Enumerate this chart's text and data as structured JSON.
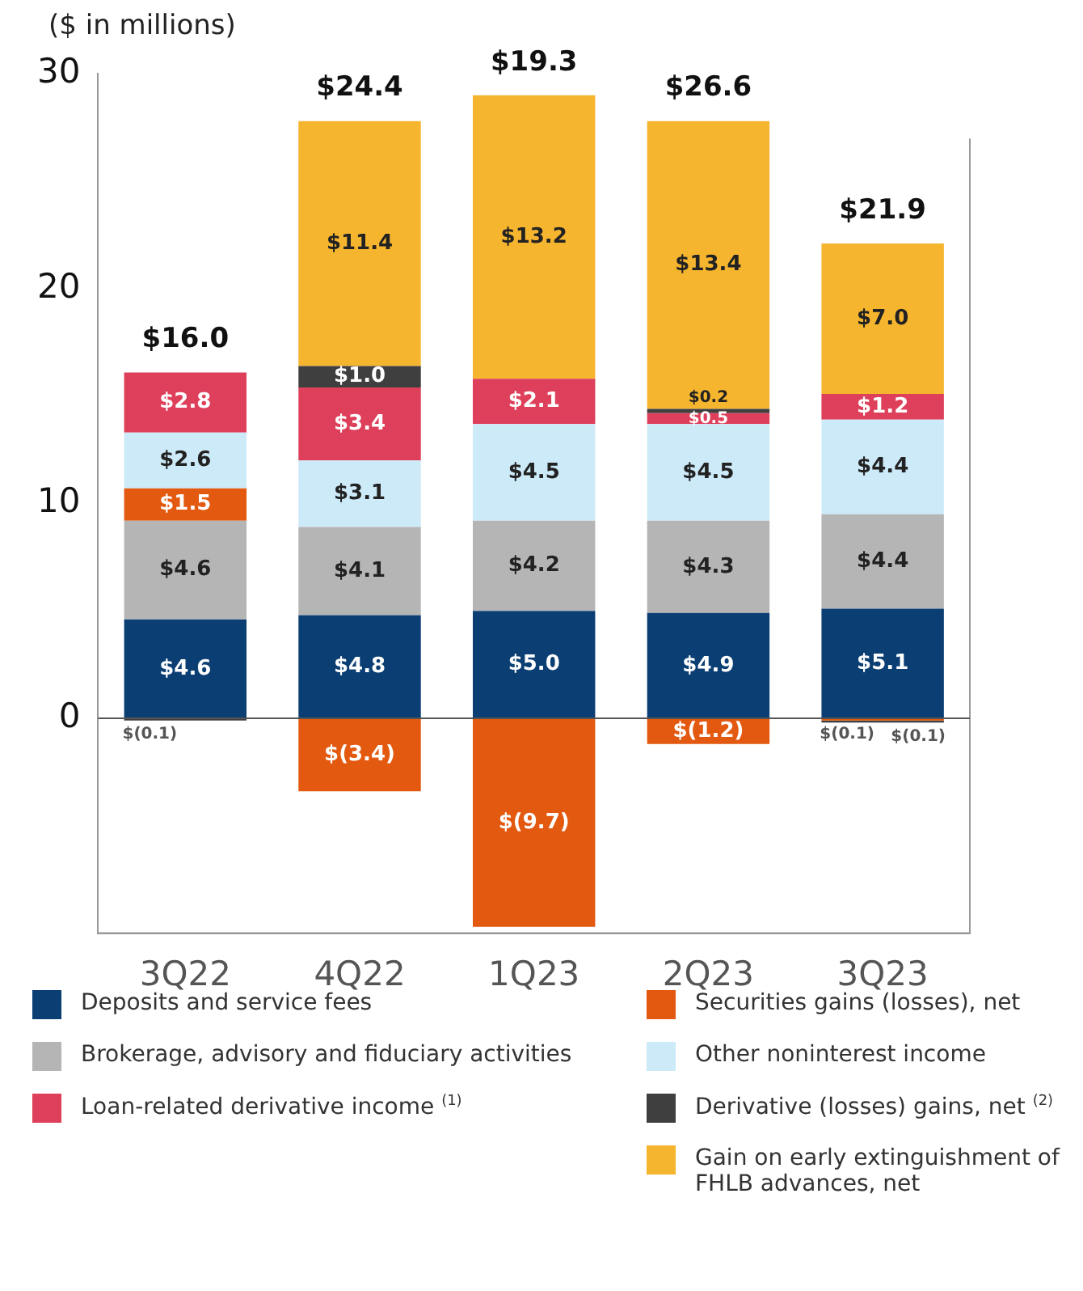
{
  "chart_data": {
    "type": "bar",
    "stacked": true,
    "ylabel": "($ in millions)",
    "categories": [
      "3Q22",
      "4Q22",
      "1Q23",
      "2Q23",
      "3Q23"
    ],
    "series": [
      {
        "name": "Deposits and service fees",
        "color": "#0b3f74",
        "values": [
          4.6,
          4.8,
          5.0,
          4.9,
          5.1
        ],
        "value_labels": [
          "$4.6",
          "$4.8",
          "$5.0",
          "$4.9",
          "$5.1"
        ]
      },
      {
        "name": "Brokerage, advisory and fiduciary activities",
        "color": "#b5b5b5",
        "values": [
          4.6,
          4.1,
          4.2,
          4.3,
          4.4
        ],
        "value_labels": [
          "$4.6",
          "$4.1",
          "$4.2",
          "$4.3",
          "$4.4"
        ]
      },
      {
        "name": "Securities gains (losses), net",
        "color": "#e2590f",
        "values": [
          1.5,
          -3.4,
          -9.7,
          -1.2,
          -0.1
        ],
        "value_labels": [
          "$1.5",
          "$(3.4)",
          "$(9.7)",
          "$(1.2)",
          "$(0.1)"
        ]
      },
      {
        "name": "Other noninterest income",
        "color": "#cdeaf9",
        "values": [
          2.6,
          3.1,
          4.5,
          4.5,
          4.4
        ],
        "value_labels": [
          "$2.6",
          "$3.1",
          "$4.5",
          "$4.5",
          "$4.4"
        ]
      },
      {
        "name": "Loan-related derivative income $^{(1)}$",
        "color": "#de3f5a",
        "values": [
          2.8,
          3.4,
          2.1,
          0.5,
          1.2
        ],
        "value_labels": [
          "$2.8",
          "$3.4",
          "$2.1",
          "$0.5",
          "$1.2"
        ]
      },
      {
        "name": "Derivative (losses) gains, net $^{(2)}$",
        "color": "#3f3f3f",
        "values": [
          -0.1,
          1.0,
          null,
          0.2,
          -0.1
        ],
        "value_labels": [
          "$(0.1)",
          "$1.0",
          null,
          "$0.2",
          "$(0.1)"
        ]
      },
      {
        "name": "Gain on early extinguishment of FHLB advances, net",
        "color": "#f6b52e",
        "values": [
          null,
          11.4,
          13.2,
          13.4,
          7.0
        ],
        "value_labels": [
          null,
          "$11.4",
          "$13.2",
          "$13.4",
          "$7.0"
        ]
      }
    ],
    "totals": [
      "$16.0",
      "$24.4",
      "$19.3",
      "$26.6",
      "$21.9"
    ],
    "ylim": [
      -10,
      30
    ],
    "yticks": [
      0,
      10,
      20,
      30
    ],
    "grid": false,
    "ref_lines": [
      {
        "axis": "y",
        "value": 0,
        "color": "#555555"
      }
    ],
    "legend": "bottom"
  }
}
